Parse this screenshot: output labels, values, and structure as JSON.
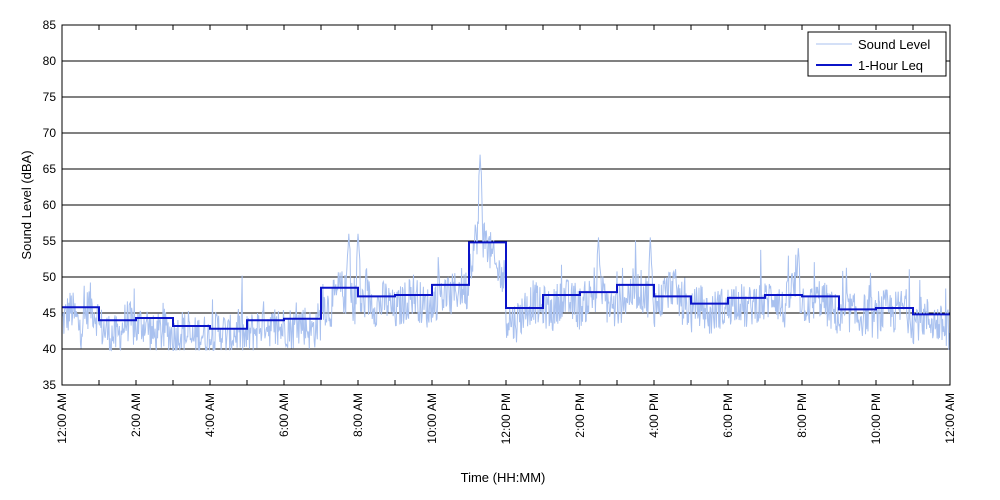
{
  "chart_data": {
    "type": "line",
    "xlabel": "Time (HH:MM)",
    "ylabel": "Sound Level (dBA)",
    "xlim": [
      0,
      24
    ],
    "ylim": [
      35,
      85
    ],
    "yticks": [
      35,
      40,
      45,
      50,
      55,
      60,
      65,
      70,
      75,
      80,
      85
    ],
    "xticks": [
      {
        "hour": 0,
        "label": "12:00 AM"
      },
      {
        "hour": 2,
        "label": "2:00 AM"
      },
      {
        "hour": 4,
        "label": "4:00 AM"
      },
      {
        "hour": 6,
        "label": "6:00 AM"
      },
      {
        "hour": 8,
        "label": "8:00 AM"
      },
      {
        "hour": 10,
        "label": "10:00 AM"
      },
      {
        "hour": 12,
        "label": "12:00 PM"
      },
      {
        "hour": 14,
        "label": "2:00 PM"
      },
      {
        "hour": 16,
        "label": "4:00 PM"
      },
      {
        "hour": 18,
        "label": "6:00 PM"
      },
      {
        "hour": 20,
        "label": "8:00 PM"
      },
      {
        "hour": 22,
        "label": "10:00 PM"
      },
      {
        "hour": 24,
        "label": "12:00 AM"
      }
    ],
    "grid": "horizontal",
    "legend_position": "top-right",
    "colors": {
      "sound_level": "#a9c1ef",
      "leq": "#0b14c8"
    },
    "series": [
      {
        "name": "Sound Level",
        "x": [
          0.0,
          0.25,
          0.5,
          0.75,
          1.0,
          1.25,
          1.5,
          1.75,
          2.0,
          2.25,
          2.5,
          2.75,
          3.0,
          3.25,
          3.5,
          3.75,
          4.0,
          4.25,
          4.5,
          4.75,
          5.0,
          5.25,
          5.5,
          5.75,
          6.0,
          6.25,
          6.5,
          6.75,
          7.0,
          7.25,
          7.5,
          7.75,
          8.0,
          8.25,
          8.5,
          8.75,
          9.0,
          9.25,
          9.5,
          9.75,
          10.0,
          10.25,
          10.5,
          10.75,
          11.0,
          11.25,
          11.5,
          11.75,
          12.0,
          12.25,
          12.5,
          12.75,
          13.0,
          13.25,
          13.5,
          13.75,
          14.0,
          14.25,
          14.5,
          14.75,
          15.0,
          15.25,
          15.5,
          15.75,
          16.0,
          16.25,
          16.5,
          16.75,
          17.0,
          17.25,
          17.5,
          17.75,
          18.0,
          18.25,
          18.5,
          18.75,
          19.0,
          19.25,
          19.5,
          19.75,
          20.0,
          20.25,
          20.5,
          20.75,
          21.0,
          21.25,
          21.5,
          21.75,
          22.0,
          22.25,
          22.5,
          22.75,
          23.0,
          23.25,
          23.5,
          23.75,
          24.0
        ],
        "y": [
          43,
          47,
          41,
          49,
          44,
          42,
          40.5,
          46,
          43,
          45,
          40,
          42.5,
          41,
          44,
          40.5,
          43,
          41,
          45,
          42,
          44,
          41,
          43,
          46,
          42,
          44,
          43,
          45,
          42,
          46,
          44,
          50,
          47,
          45,
          49,
          46,
          48,
          44,
          47,
          50,
          46,
          45,
          48,
          47,
          50,
          49,
          61,
          56,
          48,
          45,
          43,
          47,
          50,
          46,
          44,
          49,
          47,
          45,
          48,
          51,
          46,
          44,
          47,
          50,
          48,
          46,
          49,
          53,
          47,
          45,
          48,
          44,
          47,
          46,
          49,
          45,
          48,
          47,
          50,
          44,
          52,
          48,
          46,
          49,
          45,
          43,
          47,
          45,
          46,
          44,
          47,
          46,
          48,
          44,
          46,
          45,
          43,
          42
        ],
        "peaks": [
          {
            "x": 11.3,
            "y": 67
          },
          {
            "x": 7.75,
            "y": 56
          },
          {
            "x": 8.0,
            "y": 56
          },
          {
            "x": 14.5,
            "y": 55.5
          },
          {
            "x": 15.9,
            "y": 55.5
          },
          {
            "x": 19.9,
            "y": 54
          }
        ]
      },
      {
        "name": "1-Hour Leq",
        "x": [
          0,
          1,
          2,
          3,
          4,
          5,
          6,
          7,
          8,
          9,
          10,
          11,
          12,
          13,
          14,
          15,
          16,
          17,
          18,
          19,
          20,
          21,
          22,
          23
        ],
        "values": [
          45.8,
          44.0,
          44.3,
          43.2,
          42.8,
          44.0,
          44.2,
          48.5,
          47.3,
          47.5,
          48.9,
          54.8,
          45.7,
          47.5,
          47.9,
          48.9,
          47.3,
          46.3,
          47.1,
          47.5,
          47.3,
          45.5,
          45.7,
          44.8
        ]
      }
    ]
  }
}
